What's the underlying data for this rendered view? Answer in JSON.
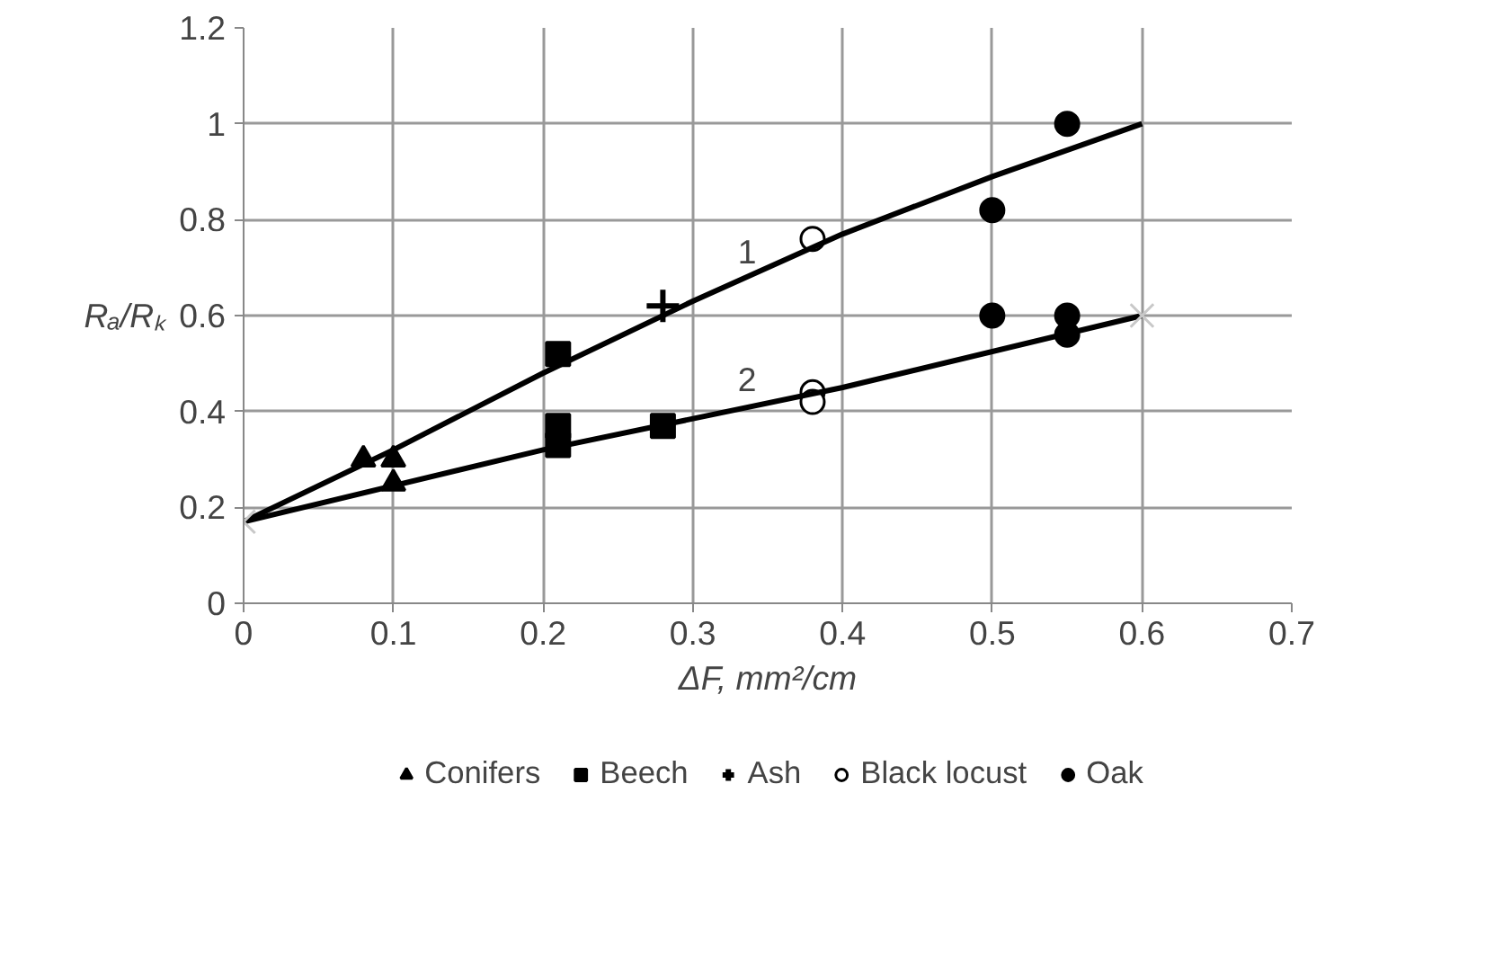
{
  "chart_data": {
    "type": "scatter",
    "xlabel": "ΔF, mm²/cm",
    "ylabel": "Rₐ/Rₖ",
    "xlim": [
      0,
      0.7
    ],
    "ylim": [
      0,
      1.2
    ],
    "xticks": [
      0,
      0.1,
      0.2,
      0.3,
      0.4,
      0.5,
      0.6,
      0.7
    ],
    "yticks": [
      0,
      0.2,
      0.4,
      0.6,
      0.8,
      1,
      1.2
    ],
    "grid": true,
    "legend": "bottom",
    "series": [
      {
        "name": "Conifers",
        "marker": "triangle",
        "color": "#000000",
        "x": [
          0.08,
          0.1,
          0.1
        ],
        "values": [
          0.3,
          0.3,
          0.25
        ]
      },
      {
        "name": "Beech",
        "marker": "square",
        "color": "#000000",
        "x": [
          0.21,
          0.21,
          0.21,
          0.28
        ],
        "values": [
          0.52,
          0.37,
          0.33,
          0.37
        ]
      },
      {
        "name": "Ash",
        "marker": "cross",
        "color": "#000000",
        "x": [
          0.28
        ],
        "values": [
          0.62
        ]
      },
      {
        "name": "Black locust",
        "marker": "circle",
        "color": "#ffffff",
        "x": [
          0.38,
          0.38,
          0.38
        ],
        "values": [
          0.76,
          0.44,
          0.42
        ]
      },
      {
        "name": "Oak",
        "marker": "circle",
        "color": "#000000",
        "x": [
          0.55,
          0.5,
          0.5,
          0.55,
          0.55
        ],
        "values": [
          1.0,
          0.82,
          0.6,
          0.6,
          0.56
        ]
      },
      {
        "type": "line",
        "name": "1",
        "color": "#000000",
        "x": [
          0,
          0.1,
          0.2,
          0.3,
          0.4,
          0.5,
          0.6
        ],
        "values": [
          0.17,
          0.32,
          0.48,
          0.63,
          0.77,
          0.89,
          1.0
        ]
      },
      {
        "type": "line",
        "name": "2",
        "color": "#000000",
        "x": [
          0,
          0.2,
          0.4,
          0.6
        ],
        "values": [
          0.17,
          0.32,
          0.45,
          0.6
        ]
      },
      {
        "marker": "x",
        "color": "#c8c8c8",
        "x": [
          0,
          0.6
        ],
        "values": [
          0.17,
          0.6
        ]
      }
    ]
  }
}
